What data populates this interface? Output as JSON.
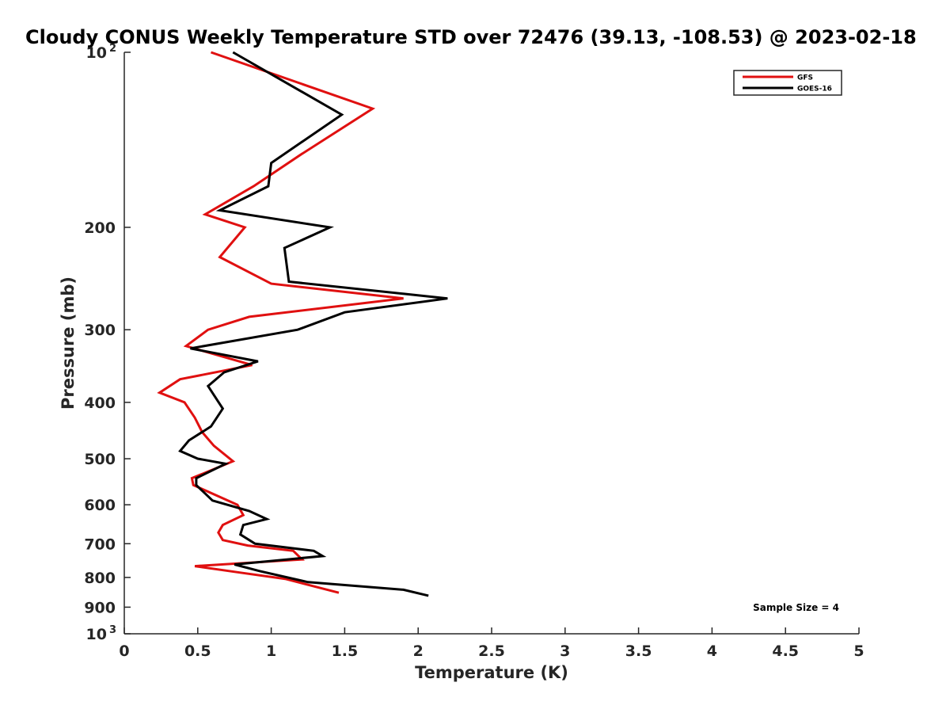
{
  "chart_data": {
    "type": "line",
    "title": "Cloudy CONUS Weekly Temperature STD over 72476 (39.13, -108.53) @ 2023-02-18",
    "xlabel": "Temperature (K)",
    "ylabel": "Pressure (mb)",
    "xlim": [
      0,
      5
    ],
    "ylim": [
      100,
      1000
    ],
    "yscale": "log",
    "y_reversed": true,
    "x_ticks": [
      0,
      0.5,
      1,
      1.5,
      2,
      2.5,
      3,
      3.5,
      4,
      4.5,
      5
    ],
    "x_tick_labels": [
      "0",
      "0.5",
      "1",
      "1.5",
      "2",
      "2.5",
      "3",
      "3.5",
      "4",
      "4.5",
      "5"
    ],
    "y_ticks": [
      100,
      200,
      300,
      400,
      500,
      600,
      700,
      800,
      900,
      1000
    ],
    "y_tick_labels": [
      {
        "base": "10",
        "exp": "2"
      },
      {
        "base": "200",
        "exp": ""
      },
      {
        "base": "300",
        "exp": ""
      },
      {
        "base": "400",
        "exp": ""
      },
      {
        "base": "500",
        "exp": ""
      },
      {
        "base": "600",
        "exp": ""
      },
      {
        "base": "700",
        "exp": ""
      },
      {
        "base": "800",
        "exp": ""
      },
      {
        "base": "900",
        "exp": ""
      },
      {
        "base": "10",
        "exp": "3"
      }
    ],
    "grid": false,
    "legend_position": "top-right",
    "annotation": "Sample Size = 4",
    "series": [
      {
        "name": "GFS",
        "color": "#e01010",
        "points": [
          {
            "x": 0.59,
            "p": 100
          },
          {
            "x": 1.69,
            "p": 125
          },
          {
            "x": 1.2,
            "p": 150
          },
          {
            "x": 0.88,
            "p": 170
          },
          {
            "x": 0.55,
            "p": 190
          },
          {
            "x": 0.82,
            "p": 200
          },
          {
            "x": 0.65,
            "p": 225
          },
          {
            "x": 1.0,
            "p": 250
          },
          {
            "x": 1.9,
            "p": 265
          },
          {
            "x": 0.85,
            "p": 285
          },
          {
            "x": 0.57,
            "p": 300
          },
          {
            "x": 0.42,
            "p": 320
          },
          {
            "x": 0.87,
            "p": 345
          },
          {
            "x": 0.38,
            "p": 365
          },
          {
            "x": 0.24,
            "p": 385
          },
          {
            "x": 0.41,
            "p": 400
          },
          {
            "x": 0.48,
            "p": 425
          },
          {
            "x": 0.53,
            "p": 450
          },
          {
            "x": 0.61,
            "p": 475
          },
          {
            "x": 0.74,
            "p": 505
          },
          {
            "x": 0.46,
            "p": 540
          },
          {
            "x": 0.47,
            "p": 555
          },
          {
            "x": 0.77,
            "p": 600
          },
          {
            "x": 0.81,
            "p": 625
          },
          {
            "x": 0.67,
            "p": 650
          },
          {
            "x": 0.64,
            "p": 670
          },
          {
            "x": 0.67,
            "p": 690
          },
          {
            "x": 0.84,
            "p": 705
          },
          {
            "x": 1.15,
            "p": 720
          },
          {
            "x": 1.21,
            "p": 745
          },
          {
            "x": 0.48,
            "p": 765
          },
          {
            "x": 0.79,
            "p": 785
          },
          {
            "x": 1.1,
            "p": 805
          },
          {
            "x": 1.3,
            "p": 830
          },
          {
            "x": 1.46,
            "p": 850
          }
        ]
      },
      {
        "name": "GOES-16",
        "color": "#000000",
        "points": [
          {
            "x": 0.74,
            "p": 100
          },
          {
            "x": 1.48,
            "p": 128
          },
          {
            "x": 1.0,
            "p": 155
          },
          {
            "x": 0.98,
            "p": 170
          },
          {
            "x": 0.65,
            "p": 187
          },
          {
            "x": 1.4,
            "p": 200
          },
          {
            "x": 1.09,
            "p": 217
          },
          {
            "x": 1.12,
            "p": 248
          },
          {
            "x": 2.2,
            "p": 265
          },
          {
            "x": 1.5,
            "p": 280
          },
          {
            "x": 1.18,
            "p": 300
          },
          {
            "x": 0.45,
            "p": 323
          },
          {
            "x": 0.91,
            "p": 340
          },
          {
            "x": 0.68,
            "p": 355
          },
          {
            "x": 0.57,
            "p": 375
          },
          {
            "x": 0.67,
            "p": 410
          },
          {
            "x": 0.59,
            "p": 440
          },
          {
            "x": 0.44,
            "p": 465
          },
          {
            "x": 0.38,
            "p": 485
          },
          {
            "x": 0.5,
            "p": 500
          },
          {
            "x": 0.69,
            "p": 510
          },
          {
            "x": 0.49,
            "p": 540
          },
          {
            "x": 0.49,
            "p": 555
          },
          {
            "x": 0.6,
            "p": 590
          },
          {
            "x": 0.85,
            "p": 615
          },
          {
            "x": 0.97,
            "p": 635
          },
          {
            "x": 0.81,
            "p": 650
          },
          {
            "x": 0.79,
            "p": 675
          },
          {
            "x": 0.89,
            "p": 700
          },
          {
            "x": 1.29,
            "p": 720
          },
          {
            "x": 1.35,
            "p": 735
          },
          {
            "x": 0.75,
            "p": 760
          },
          {
            "x": 0.92,
            "p": 780
          },
          {
            "x": 1.25,
            "p": 815
          },
          {
            "x": 1.9,
            "p": 840
          },
          {
            "x": 2.07,
            "p": 860
          }
        ]
      }
    ]
  }
}
